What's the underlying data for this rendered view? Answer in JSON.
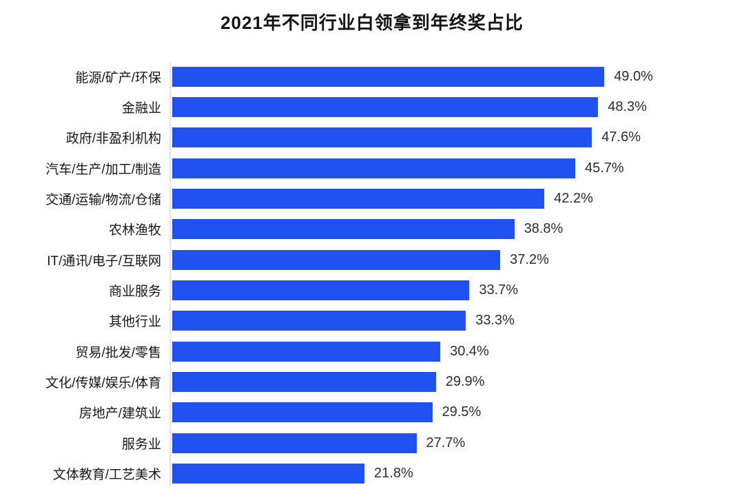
{
  "page": {
    "title": "2021年不同行业白领拿到年终奖占比"
  },
  "chart_data": {
    "type": "bar",
    "orientation": "horizontal",
    "title": "2021年不同行业白领拿到年终奖占比",
    "categories": [
      "能源/矿产/环保",
      "金融业",
      "政府/非盈利机构",
      "汽车/生产/加工/制造",
      "交通/运输/物流/仓储",
      "农林渔牧",
      "IT/通讯/电子/互联网",
      "商业服务",
      "其他行业",
      "贸易/批发/零售",
      "文化/传媒/娱乐/体育",
      "房地产/建筑业",
      "服务业",
      "文体教育/工艺美术"
    ],
    "values": [
      49.0,
      48.3,
      47.6,
      45.7,
      42.2,
      38.8,
      37.2,
      33.7,
      33.3,
      30.4,
      29.9,
      29.5,
      27.7,
      21.8
    ],
    "value_labels": [
      "49.0%",
      "48.3%",
      "47.6%",
      "45.7%",
      "42.2%",
      "38.8%",
      "37.2%",
      "33.7%",
      "33.3%",
      "30.4%",
      "29.9%",
      "29.5%",
      "27.7%",
      "21.8%"
    ],
    "xlabel": "",
    "ylabel": "",
    "xlim": [
      0,
      64
    ],
    "grid": "off",
    "legend": "none",
    "bar_color": "#2251f2",
    "axis_line_color": "#e3e5ee",
    "label_color": "#17181c",
    "value_color": "#2d2d2f"
  }
}
